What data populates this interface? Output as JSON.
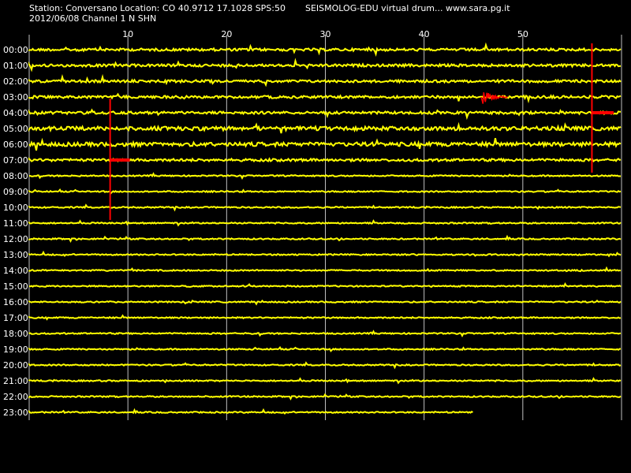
{
  "header": {
    "station_line": "Station: Conversano Location: CO 40.9712 17.1028 SPS:50",
    "product_line": "SEISMOLOG-EDU virtual drum... www.sara.pg.it",
    "date_line": "2012/06/08  Channel 1 N SHN"
  },
  "colors": {
    "background": "#000000",
    "trace": "#ffff00",
    "event_marker": "#ff0000",
    "grid": "#c0c0c0",
    "text": "#ffffff"
  },
  "chart_data": {
    "type": "line",
    "title": "",
    "xlabel": "",
    "ylabel": "",
    "x_ticks": [
      "10",
      "20",
      "30",
      "40",
      "50"
    ],
    "xlim": [
      0,
      60
    ],
    "y_tick_labels": [
      "00:00",
      "01:00",
      "02:00",
      "03:00",
      "04:00",
      "05:00",
      "06:00",
      "07:00",
      "08:00",
      "09:00",
      "10:00",
      "11:00",
      "12:00",
      "13:00",
      "14:00",
      "15:00",
      "16:00",
      "17:00",
      "18:00",
      "19:00",
      "20:00",
      "21:00",
      "22:00",
      "23:00"
    ],
    "grid": "vertical",
    "series": [
      {
        "row": "00:00",
        "x_start": 0,
        "x_end": 60,
        "noise_level": 2
      },
      {
        "row": "01:00",
        "x_start": 0,
        "x_end": 60,
        "noise_level": 2
      },
      {
        "row": "02:00",
        "x_start": 0,
        "x_end": 60,
        "noise_level": 2
      },
      {
        "row": "03:00",
        "x_start": 0,
        "x_end": 60,
        "noise_level": 2
      },
      {
        "row": "04:00",
        "x_start": 0,
        "x_end": 60,
        "noise_level": 2
      },
      {
        "row": "05:00",
        "x_start": 0,
        "x_end": 60,
        "noise_level": 3
      },
      {
        "row": "06:00",
        "x_start": 0,
        "x_end": 60,
        "noise_level": 3
      },
      {
        "row": "07:00",
        "x_start": 0,
        "x_end": 60,
        "noise_level": 2
      },
      {
        "row": "08:00",
        "x_start": 0,
        "x_end": 60,
        "noise_level": 1
      },
      {
        "row": "09:00",
        "x_start": 0,
        "x_end": 60,
        "noise_level": 1
      },
      {
        "row": "10:00",
        "x_start": 0,
        "x_end": 60,
        "noise_level": 1
      },
      {
        "row": "11:00",
        "x_start": 0,
        "x_end": 60,
        "noise_level": 1
      },
      {
        "row": "12:00",
        "x_start": 0,
        "x_end": 60,
        "noise_level": 1
      },
      {
        "row": "13:00",
        "x_start": 0,
        "x_end": 60,
        "noise_level": 1
      },
      {
        "row": "14:00",
        "x_start": 0,
        "x_end": 60,
        "noise_level": 1
      },
      {
        "row": "15:00",
        "x_start": 0,
        "x_end": 60,
        "noise_level": 1
      },
      {
        "row": "16:00",
        "x_start": 0,
        "x_end": 60,
        "noise_level": 1
      },
      {
        "row": "17:00",
        "x_start": 0,
        "x_end": 60,
        "noise_level": 1
      },
      {
        "row": "18:00",
        "x_start": 0,
        "x_end": 60,
        "noise_level": 1
      },
      {
        "row": "19:00",
        "x_start": 0,
        "x_end": 60,
        "noise_level": 1
      },
      {
        "row": "20:00",
        "x_start": 0,
        "x_end": 60,
        "noise_level": 1
      },
      {
        "row": "21:00",
        "x_start": 0,
        "x_end": 60,
        "noise_level": 1
      },
      {
        "row": "22:00",
        "x_start": 0,
        "x_end": 60,
        "noise_level": 1
      },
      {
        "row": "23:00",
        "x_start": 0,
        "x_end": 45,
        "noise_level": 1
      }
    ],
    "events": [
      {
        "row": "03:00",
        "x_start": 45.8,
        "x_end": 48.5,
        "amplitude": 14,
        "type": "burst"
      }
    ],
    "markers": [
      {
        "type": "vertical",
        "x": 57,
        "y_from": 0,
        "y_to": 7.8
      },
      {
        "type": "horizontal",
        "row": "04:00",
        "x_from": 57,
        "x_to": 59.2
      },
      {
        "type": "vertical",
        "x": 8.2,
        "y_from": 3.5,
        "y_to": 10.8
      },
      {
        "type": "horizontal",
        "row": "07:00",
        "x_from": 8.2,
        "x_to": 10.2
      }
    ]
  }
}
